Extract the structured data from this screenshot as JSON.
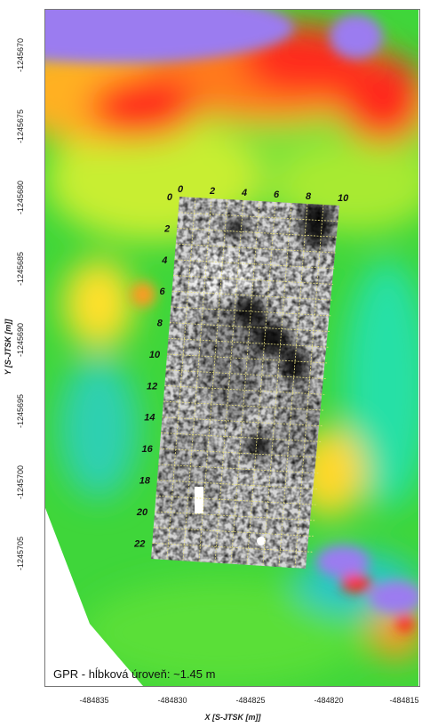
{
  "caption": "GPR - hĺbková úroveň: ~1.45 m",
  "axes": {
    "y_title": "Y [S-JTSK [m]]",
    "x_title": "X [S-JTSK [m]]",
    "y_ticks": [
      "-1245670",
      "-1245675",
      "-1245680",
      "-1245685",
      "-1245690",
      "-1245695",
      "-1245700",
      "-1245705"
    ],
    "x_ticks": [
      "-484835",
      "-484830",
      "-484825",
      "-484820",
      "-484815"
    ]
  },
  "gpr_grid": {
    "top_labels": [
      "0",
      "2",
      "4",
      "6",
      "8",
      "10"
    ],
    "side_labels": [
      "0",
      "2",
      "4",
      "6",
      "8",
      "10",
      "12",
      "14",
      "16",
      "18",
      "20",
      "22"
    ]
  },
  "colors": {
    "background_high": "#ff2a1a",
    "background_mid": "#ffee22",
    "background_low": "#22dd33",
    "background_lowest": "#9977ee",
    "grid_line": "#e8e080"
  }
}
